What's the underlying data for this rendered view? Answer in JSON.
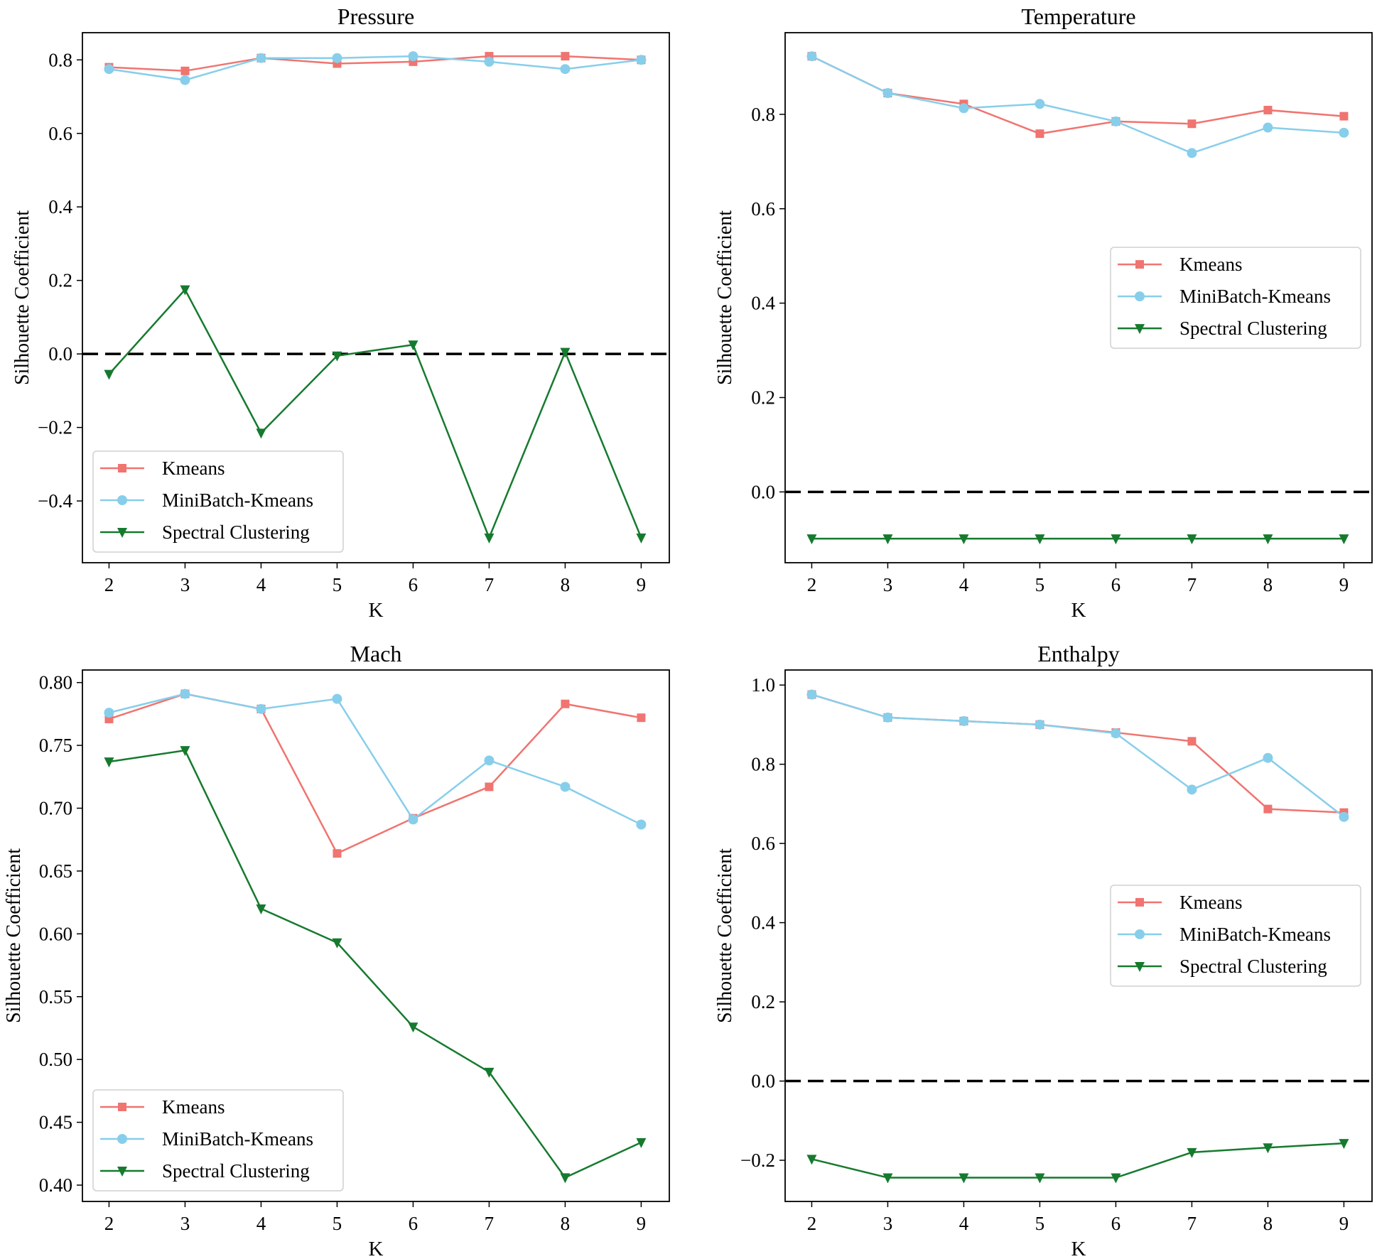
{
  "colors": {
    "kmeans": "#f07470",
    "minibatch": "#87ceeb",
    "spectral": "#167a2e",
    "zero_line": "#000000"
  },
  "chart_data": [
    {
      "type": "line",
      "title": "Pressure",
      "xlabel": "K",
      "ylabel": "Silhouette Coefficient",
      "x": [
        2,
        3,
        4,
        5,
        6,
        7,
        8,
        9
      ],
      "xlim": [
        1.65,
        9.37
      ],
      "ylim": [
        -0.568,
        0.874
      ],
      "yticks": [
        -0.4,
        -0.2,
        0.0,
        0.2,
        0.4,
        0.6,
        0.8
      ],
      "ytick_labels": [
        "−0.4",
        "−0.2",
        "0.0",
        "0.2",
        "0.4",
        "0.6",
        "0.8"
      ],
      "xtick_labels": [
        "2",
        "3",
        "4",
        "5",
        "6",
        "7",
        "8",
        "9"
      ],
      "reference_line": {
        "y": 0.0,
        "style": "dashed"
      },
      "legend_position": "lower-left",
      "series": [
        {
          "name": "Kmeans",
          "marker": "square",
          "values": [
            0.78,
            0.77,
            0.805,
            0.79,
            0.795,
            0.81,
            0.81,
            0.8
          ]
        },
        {
          "name": "MiniBatch-Kmeans",
          "marker": "circle",
          "values": [
            0.775,
            0.745,
            0.805,
            0.805,
            0.81,
            0.795,
            0.775,
            0.8
          ]
        },
        {
          "name": "Spectral Clustering",
          "marker": "triangle-down",
          "values": [
            -0.055,
            0.175,
            -0.215,
            -0.005,
            0.025,
            -0.5,
            0.005,
            -0.5
          ]
        }
      ]
    },
    {
      "type": "line",
      "title": "Temperature",
      "xlabel": "K",
      "ylabel": "Silhouette Coefficient",
      "x": [
        2,
        3,
        4,
        5,
        6,
        7,
        8,
        9
      ],
      "xlim": [
        1.65,
        9.37
      ],
      "ylim": [
        -0.15,
        0.973
      ],
      "yticks": [
        0.0,
        0.2,
        0.4,
        0.6,
        0.8
      ],
      "ytick_labels": [
        "0.0",
        "0.2",
        "0.4",
        "0.6",
        "0.8"
      ],
      "xtick_labels": [
        "2",
        "3",
        "4",
        "5",
        "6",
        "7",
        "8",
        "9"
      ],
      "reference_line": {
        "y": 0.0,
        "style": "dashed"
      },
      "legend_position": "center-right",
      "series": [
        {
          "name": "Kmeans",
          "marker": "square",
          "values": [
            0.923,
            0.845,
            0.822,
            0.759,
            0.785,
            0.78,
            0.809,
            0.796
          ]
        },
        {
          "name": "MiniBatch-Kmeans",
          "marker": "circle",
          "values": [
            0.923,
            0.845,
            0.813,
            0.822,
            0.785,
            0.718,
            0.772,
            0.761
          ]
        },
        {
          "name": "Spectral Clustering",
          "marker": "triangle-down",
          "values": [
            -0.099,
            -0.099,
            -0.099,
            -0.099,
            -0.099,
            -0.099,
            -0.099,
            -0.099
          ]
        }
      ]
    },
    {
      "type": "line",
      "title": "Mach",
      "xlabel": "K",
      "ylabel": "Silhouette Coefficient",
      "x": [
        2,
        3,
        4,
        5,
        6,
        7,
        8,
        9
      ],
      "xlim": [
        1.65,
        9.37
      ],
      "ylim": [
        0.387,
        0.81
      ],
      "yticks": [
        0.4,
        0.45,
        0.5,
        0.55,
        0.6,
        0.65,
        0.7,
        0.75,
        0.8
      ],
      "ytick_labels": [
        "0.40",
        "0.45",
        "0.50",
        "0.55",
        "0.60",
        "0.65",
        "0.70",
        "0.75",
        "0.80"
      ],
      "xtick_labels": [
        "2",
        "3",
        "4",
        "5",
        "6",
        "7",
        "8",
        "9"
      ],
      "legend_position": "lower-left",
      "series": [
        {
          "name": "Kmeans",
          "marker": "square",
          "values": [
            0.771,
            0.791,
            0.779,
            0.664,
            0.692,
            0.717,
            0.783,
            0.772
          ]
        },
        {
          "name": "MiniBatch-Kmeans",
          "marker": "circle",
          "values": [
            0.776,
            0.791,
            0.779,
            0.787,
            0.691,
            0.738,
            0.717,
            0.687
          ]
        },
        {
          "name": "Spectral Clustering",
          "marker": "triangle-down",
          "values": [
            0.737,
            0.746,
            0.62,
            0.593,
            0.526,
            0.49,
            0.406,
            0.434
          ]
        }
      ]
    },
    {
      "type": "line",
      "title": "Enthalpy",
      "xlabel": "K",
      "ylabel": "Silhouette Coefficient",
      "x": [
        2,
        3,
        4,
        5,
        6,
        7,
        8,
        9
      ],
      "xlim": [
        1.65,
        9.37
      ],
      "ylim": [
        -0.304,
        1.038
      ],
      "yticks": [
        -0.2,
        0.0,
        0.2,
        0.4,
        0.6,
        0.8,
        1.0
      ],
      "ytick_labels": [
        "−0.2",
        "0.0",
        "0.2",
        "0.4",
        "0.6",
        "0.8",
        "1.0"
      ],
      "xtick_labels": [
        "2",
        "3",
        "4",
        "5",
        "6",
        "7",
        "8",
        "9"
      ],
      "reference_line": {
        "y": 0.0,
        "style": "dashed"
      },
      "legend_position": "center-right",
      "series": [
        {
          "name": "Kmeans",
          "marker": "square",
          "values": [
            0.976,
            0.918,
            0.909,
            0.9,
            0.88,
            0.858,
            0.687,
            0.678
          ]
        },
        {
          "name": "MiniBatch-Kmeans",
          "marker": "circle",
          "values": [
            0.976,
            0.918,
            0.909,
            0.9,
            0.878,
            0.736,
            0.816,
            0.667
          ]
        },
        {
          "name": "Spectral Clustering",
          "marker": "triangle-down",
          "values": [
            -0.197,
            -0.244,
            -0.244,
            -0.244,
            -0.244,
            -0.18,
            -0.168,
            -0.157
          ]
        }
      ]
    }
  ]
}
